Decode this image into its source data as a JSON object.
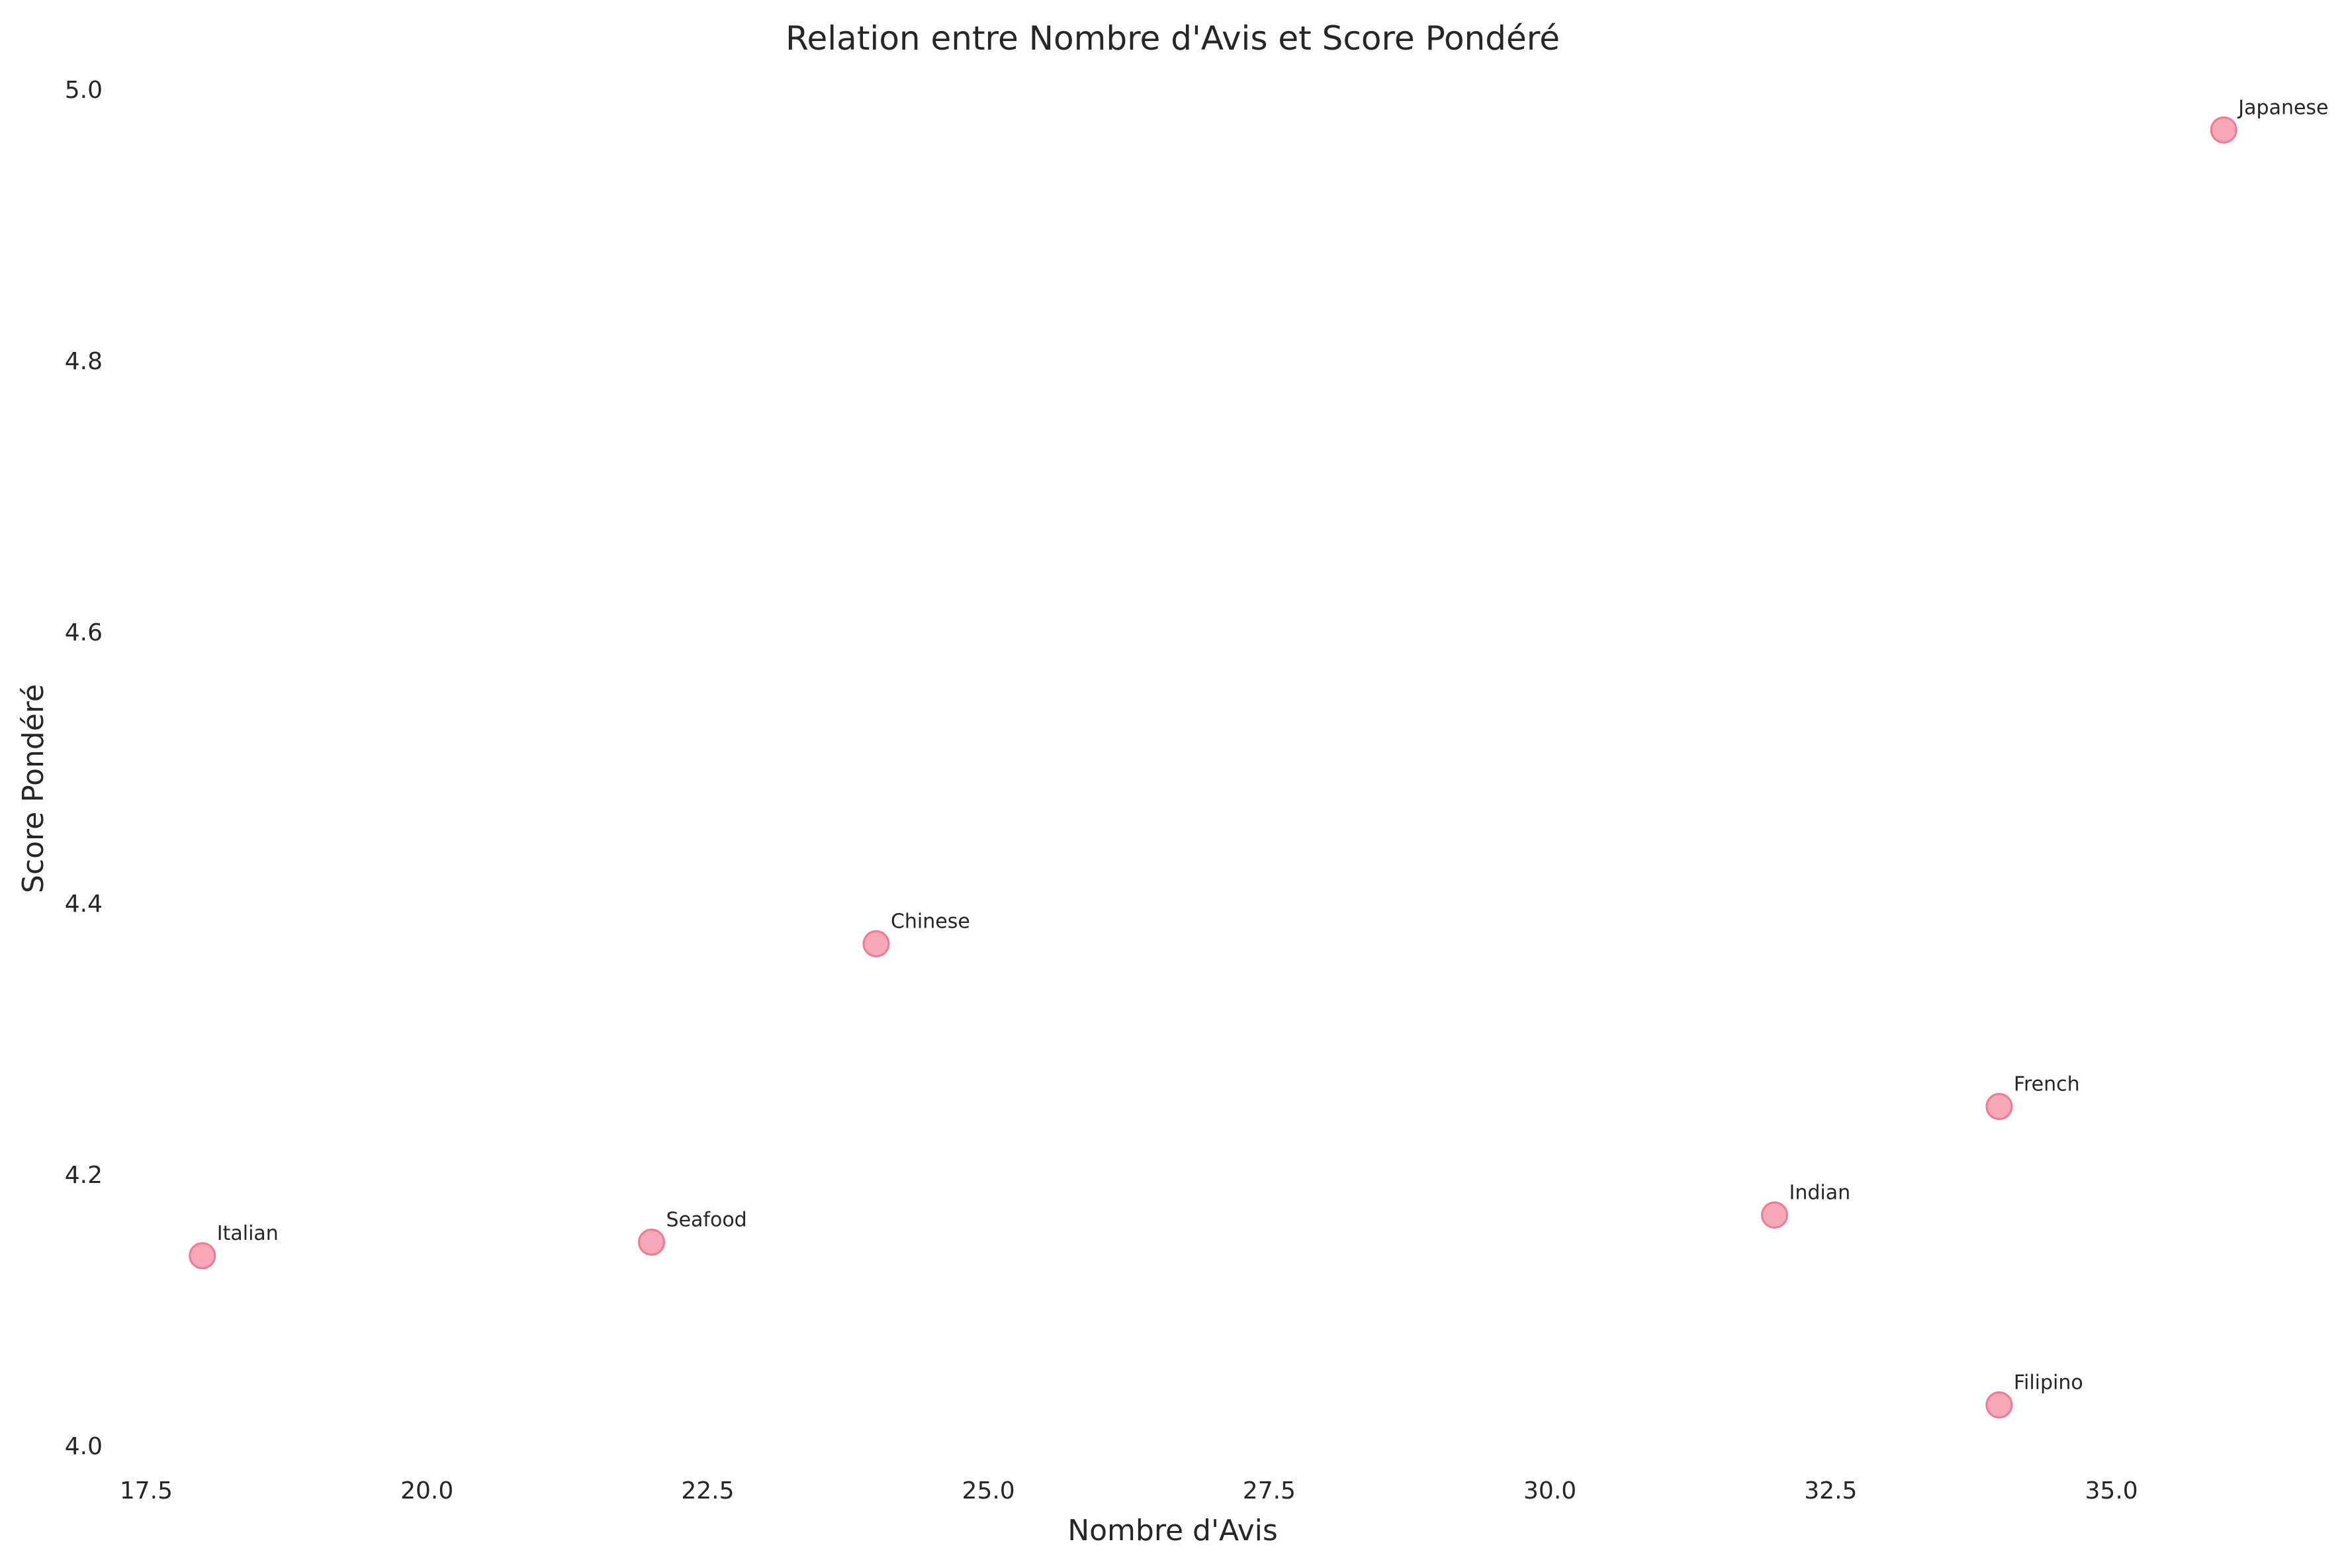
{
  "chart_data": {
    "type": "scatter",
    "title": "Relation entre Nombre d'Avis et Score Pondéré",
    "xlabel": "Nombre d'Avis",
    "ylabel": "Score Pondéré",
    "xlim": [
      17.2,
      37.0
    ],
    "ylim": [
      4.0,
      5.0
    ],
    "x_ticks": [
      17.5,
      20.0,
      22.5,
      25.0,
      27.5,
      30.0,
      32.5,
      35.0
    ],
    "x_tick_labels": [
      "17.5",
      "20.0",
      "22.5",
      "25.0",
      "27.5",
      "30.0",
      "32.5",
      "35.0"
    ],
    "y_ticks": [
      4.0,
      4.2,
      4.4,
      4.6,
      4.8,
      5.0
    ],
    "y_tick_labels": [
      "4.0",
      "4.2",
      "4.4",
      "4.6",
      "4.8",
      "5.0"
    ],
    "grid": false,
    "point_color": "#f4899e",
    "points": [
      {
        "label": "Japanese",
        "x": 36,
        "y": 4.97
      },
      {
        "label": "Chinese",
        "x": 24,
        "y": 4.37
      },
      {
        "label": "French",
        "x": 34,
        "y": 4.25
      },
      {
        "label": "Indian",
        "x": 32,
        "y": 4.17
      },
      {
        "label": "Seafood",
        "x": 22,
        "y": 4.15
      },
      {
        "label": "Italian",
        "x": 18,
        "y": 4.14
      },
      {
        "label": "Filipino",
        "x": 34,
        "y": 4.03
      }
    ]
  }
}
